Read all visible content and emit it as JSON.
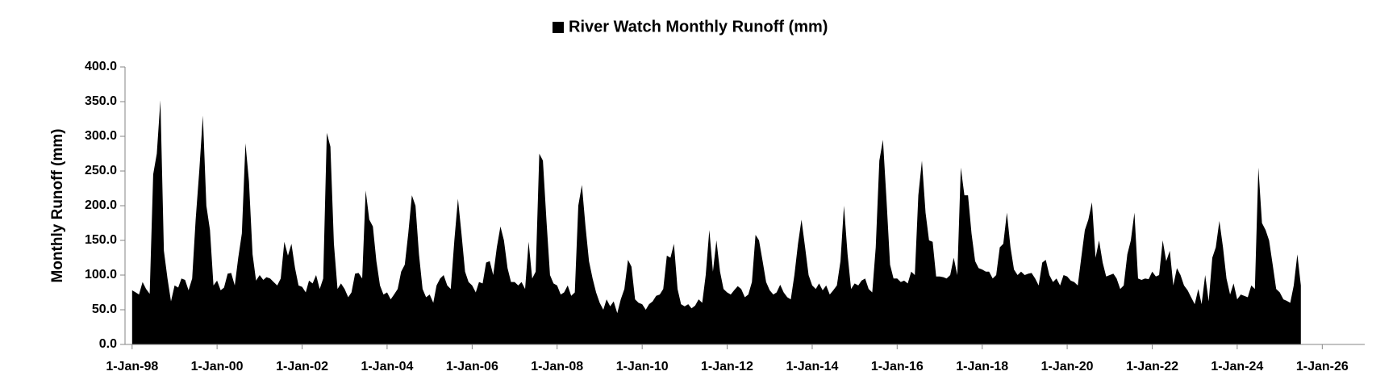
{
  "chart_data": {
    "type": "area",
    "y_label": "Monthly Runoff (mm)",
    "series": [
      {
        "name": "River Watch Monthly Runoff (mm)",
        "color": "#000000",
        "values": [
          78,
          75,
          72,
          90,
          80,
          73,
          245,
          275,
          352,
          135,
          95,
          62,
          85,
          82,
          95,
          93,
          78,
          95,
          180,
          250,
          330,
          200,
          165,
          85,
          92,
          78,
          82,
          102,
          103,
          85,
          125,
          160,
          290,
          235,
          130,
          92,
          100,
          93,
          97,
          95,
          90,
          85,
          95,
          148,
          128,
          145,
          110,
          85,
          83,
          75,
          92,
          88,
          100,
          80,
          95,
          305,
          285,
          145,
          80,
          88,
          80,
          68,
          75,
          102,
          103,
          95,
          222,
          180,
          170,
          120,
          85,
          72,
          75,
          65,
          72,
          80,
          105,
          115,
          160,
          215,
          200,
          130,
          80,
          68,
          72,
          60,
          85,
          95,
          100,
          85,
          80,
          150,
          210,
          160,
          105,
          90,
          85,
          75,
          90,
          88,
          118,
          120,
          100,
          140,
          170,
          150,
          110,
          90,
          90,
          85,
          90,
          80,
          148,
          95,
          105,
          275,
          265,
          180,
          100,
          88,
          85,
          72,
          75,
          85,
          70,
          75,
          200,
          230,
          170,
          120,
          95,
          75,
          60,
          50,
          65,
          55,
          62,
          45,
          65,
          80,
          122,
          112,
          65,
          60,
          58,
          50,
          58,
          62,
          70,
          72,
          80,
          128,
          125,
          145,
          80,
          58,
          55,
          58,
          52,
          56,
          65,
          60,
          100,
          165,
          105,
          150,
          105,
          80,
          75,
          72,
          78,
          84,
          80,
          68,
          72,
          90,
          158,
          150,
          120,
          90,
          78,
          72,
          75,
          86,
          75,
          68,
          65,
          100,
          145,
          180,
          140,
          100,
          85,
          80,
          88,
          78,
          85,
          72,
          78,
          85,
          120,
          200,
          130,
          80,
          88,
          85,
          92,
          95,
          80,
          75,
          140,
          265,
          295,
          210,
          115,
          95,
          95,
          90,
          92,
          88,
          105,
          100,
          215,
          265,
          190,
          150,
          148,
          98,
          98,
          97,
          95,
          100,
          125,
          100,
          255,
          215,
          215,
          160,
          120,
          110,
          108,
          105,
          105,
          95,
          100,
          140,
          145,
          190,
          140,
          108,
          100,
          105,
          100,
          102,
          103,
          95,
          85,
          118,
          122,
          100,
          90,
          95,
          85,
          100,
          98,
          92,
          90,
          85,
          125,
          165,
          180,
          205,
          125,
          150,
          118,
          98,
          100,
          102,
          95,
          80,
          85,
          130,
          150,
          190,
          95,
          93,
          95,
          94,
          105,
          98,
          100,
          150,
          120,
          135,
          85,
          110,
          100,
          85,
          78,
          68,
          58,
          80,
          58,
          100,
          62,
          125,
          140,
          178,
          140,
          95,
          72,
          88,
          65,
          72,
          70,
          68,
          85,
          80,
          255,
          175,
          165,
          150,
          115,
          80,
          75,
          65,
          63,
          60,
          85,
          130,
          85
        ]
      }
    ],
    "x": [
      "1998-01-01",
      "1998-02-01",
      "1998-03-01",
      "1998-04-01",
      "1998-05-01",
      "1998-06-01",
      "1998-07-01",
      "1998-08-01",
      "1998-09-01",
      "1998-10-01",
      "1998-11-01",
      "1998-12-01",
      "1999-01-01",
      "1999-02-01",
      "1999-03-01",
      "1999-04-01",
      "1999-05-01",
      "1999-06-01",
      "1999-07-01",
      "1999-08-01",
      "1999-09-01",
      "1999-10-01",
      "1999-11-01",
      "1999-12-01",
      "2000-01-01",
      "2000-02-01",
      "2000-03-01",
      "2000-04-01",
      "2000-05-01",
      "2000-06-01",
      "2000-07-01",
      "2000-08-01",
      "2000-09-01",
      "2000-10-01",
      "2000-11-01",
      "2000-12-01",
      "2001-01-01",
      "2001-02-01",
      "2001-03-01",
      "2001-04-01",
      "2001-05-01",
      "2001-06-01",
      "2001-07-01",
      "2001-08-01",
      "2001-09-01",
      "2001-10-01",
      "2001-11-01",
      "2001-12-01",
      "2002-01-01",
      "2002-02-01",
      "2002-03-01",
      "2002-04-01",
      "2002-05-01",
      "2002-06-01",
      "2002-07-01",
      "2002-08-01",
      "2002-09-01",
      "2002-10-01",
      "2002-11-01",
      "2002-12-01",
      "2003-01-01",
      "2003-02-01",
      "2003-03-01",
      "2003-04-01",
      "2003-05-01",
      "2003-06-01",
      "2003-07-01",
      "2003-08-01",
      "2003-09-01",
      "2003-10-01",
      "2003-11-01",
      "2003-12-01",
      "2004-01-01",
      "2004-02-01",
      "2004-03-01",
      "2004-04-01",
      "2004-05-01",
      "2004-06-01",
      "2004-07-01",
      "2004-08-01",
      "2004-09-01",
      "2004-10-01",
      "2004-11-01",
      "2004-12-01",
      "2005-01-01",
      "2005-02-01",
      "2005-03-01",
      "2005-04-01",
      "2005-05-01",
      "2005-06-01",
      "2005-07-01",
      "2005-08-01",
      "2005-09-01",
      "2005-10-01",
      "2005-11-01",
      "2005-12-01",
      "2006-01-01",
      "2006-02-01",
      "2006-03-01",
      "2006-04-01",
      "2006-05-01",
      "2006-06-01",
      "2006-07-01",
      "2006-08-01",
      "2006-09-01",
      "2006-10-01",
      "2006-11-01",
      "2006-12-01",
      "2007-01-01",
      "2007-02-01",
      "2007-03-01",
      "2007-04-01",
      "2007-05-01",
      "2007-06-01",
      "2007-07-01",
      "2007-08-01",
      "2007-09-01",
      "2007-10-01",
      "2007-11-01",
      "2007-12-01",
      "2008-01-01",
      "2008-02-01",
      "2008-03-01",
      "2008-04-01",
      "2008-05-01",
      "2008-06-01",
      "2008-07-01",
      "2008-08-01",
      "2008-09-01",
      "2008-10-01",
      "2008-11-01",
      "2008-12-01",
      "2009-01-01",
      "2009-02-01",
      "2009-03-01",
      "2009-04-01",
      "2009-05-01",
      "2009-06-01",
      "2009-07-01",
      "2009-08-01",
      "2009-09-01",
      "2009-10-01",
      "2009-11-01",
      "2009-12-01",
      "2010-01-01",
      "2010-02-01",
      "2010-03-01",
      "2010-04-01",
      "2010-05-01",
      "2010-06-01",
      "2010-07-01",
      "2010-08-01",
      "2010-09-01",
      "2010-10-01",
      "2010-11-01",
      "2010-12-01",
      "2011-01-01",
      "2011-02-01",
      "2011-03-01",
      "2011-04-01",
      "2011-05-01",
      "2011-06-01",
      "2011-07-01",
      "2011-08-01",
      "2011-09-01",
      "2011-10-01",
      "2011-11-01",
      "2011-12-01",
      "2012-01-01",
      "2012-02-01",
      "2012-03-01",
      "2012-04-01",
      "2012-05-01",
      "2012-06-01",
      "2012-07-01",
      "2012-08-01",
      "2012-09-01",
      "2012-10-01",
      "2012-11-01",
      "2012-12-01",
      "2013-01-01",
      "2013-02-01",
      "2013-03-01",
      "2013-04-01",
      "2013-05-01",
      "2013-06-01",
      "2013-07-01",
      "2013-08-01",
      "2013-09-01",
      "2013-10-01",
      "2013-11-01",
      "2013-12-01",
      "2014-01-01",
      "2014-02-01",
      "2014-03-01",
      "2014-04-01",
      "2014-05-01",
      "2014-06-01",
      "2014-07-01",
      "2014-08-01",
      "2014-09-01",
      "2014-10-01",
      "2014-11-01",
      "2014-12-01",
      "2015-01-01",
      "2015-02-01",
      "2015-03-01",
      "2015-04-01",
      "2015-05-01",
      "2015-06-01",
      "2015-07-01",
      "2015-08-01",
      "2015-09-01",
      "2015-10-01",
      "2015-11-01",
      "2015-12-01",
      "2016-01-01",
      "2016-02-01",
      "2016-03-01",
      "2016-04-01",
      "2016-05-01",
      "2016-06-01",
      "2016-07-01",
      "2016-08-01",
      "2016-09-01",
      "2016-10-01",
      "2016-11-01",
      "2016-12-01",
      "2017-01-01",
      "2017-02-01",
      "2017-03-01",
      "2017-04-01",
      "2017-05-01",
      "2017-06-01",
      "2017-07-01",
      "2017-08-01",
      "2017-09-01",
      "2017-10-01",
      "2017-11-01",
      "2017-12-01",
      "2018-01-01",
      "2018-02-01",
      "2018-03-01",
      "2018-04-01",
      "2018-05-01",
      "2018-06-01",
      "2018-07-01",
      "2018-08-01",
      "2018-09-01",
      "2018-10-01",
      "2018-11-01",
      "2018-12-01",
      "2019-01-01",
      "2019-02-01",
      "2019-03-01",
      "2019-04-01",
      "2019-05-01",
      "2019-06-01",
      "2019-07-01",
      "2019-08-01",
      "2019-09-01",
      "2019-10-01",
      "2019-11-01",
      "2019-12-01",
      "2020-01-01",
      "2020-02-01",
      "2020-03-01",
      "2020-04-01",
      "2020-05-01",
      "2020-06-01",
      "2020-07-01",
      "2020-08-01",
      "2020-09-01",
      "2020-10-01",
      "2020-11-01",
      "2020-12-01",
      "2021-01-01",
      "2021-02-01",
      "2021-03-01",
      "2021-04-01",
      "2021-05-01",
      "2021-06-01",
      "2021-07-01",
      "2021-08-01",
      "2021-09-01",
      "2021-10-01",
      "2021-11-01",
      "2021-12-01",
      "2022-01-01",
      "2022-02-01",
      "2022-03-01",
      "2022-04-01",
      "2022-05-01",
      "2022-06-01",
      "2022-07-01",
      "2022-08-01",
      "2022-09-01",
      "2022-10-01",
      "2022-11-01",
      "2022-12-01",
      "2023-01-01",
      "2023-02-01",
      "2023-03-01",
      "2023-04-01",
      "2023-05-01",
      "2023-06-01",
      "2023-07-01",
      "2023-08-01",
      "2023-09-01",
      "2023-10-01",
      "2023-11-01",
      "2023-12-01",
      "2024-01-01",
      "2024-02-01",
      "2024-03-01",
      "2024-04-01",
      "2024-05-01",
      "2024-06-01",
      "2024-07-01",
      "2024-08-01",
      "2024-09-01",
      "2024-10-01",
      "2024-11-01",
      "2024-12-01",
      "2025-01-01",
      "2025-02-01",
      "2025-03-01",
      "2025-04-01",
      "2025-05-01",
      "2025-06-01",
      "2025-07-01"
    ],
    "xlim": [
      "1997-11-01",
      "2027-01-01"
    ],
    "xticks": [
      {
        "value": "1998-01-01",
        "label": "1-Jan-98"
      },
      {
        "value": "2000-01-01",
        "label": "1-Jan-00"
      },
      {
        "value": "2002-01-01",
        "label": "1-Jan-02"
      },
      {
        "value": "2004-01-01",
        "label": "1-Jan-04"
      },
      {
        "value": "2006-01-01",
        "label": "1-Jan-06"
      },
      {
        "value": "2008-01-01",
        "label": "1-Jan-08"
      },
      {
        "value": "2010-01-01",
        "label": "1-Jan-10"
      },
      {
        "value": "2012-01-01",
        "label": "1-Jan-12"
      },
      {
        "value": "2014-01-01",
        "label": "1-Jan-14"
      },
      {
        "value": "2016-01-01",
        "label": "1-Jan-16"
      },
      {
        "value": "2018-01-01",
        "label": "1-Jan-18"
      },
      {
        "value": "2020-01-01",
        "label": "1-Jan-20"
      },
      {
        "value": "2022-01-01",
        "label": "1-Jan-22"
      },
      {
        "value": "2024-01-01",
        "label": "1-Jan-24"
      },
      {
        "value": "2026-01-01",
        "label": "1-Jan-26"
      }
    ],
    "ylim": [
      0,
      400
    ],
    "yticks": [
      {
        "value": 0,
        "label": "0.0"
      },
      {
        "value": 50,
        "label": "50.0"
      },
      {
        "value": 100,
        "label": "100.0"
      },
      {
        "value": 150,
        "label": "150.0"
      },
      {
        "value": 200,
        "label": "200.0"
      },
      {
        "value": 250,
        "label": "250.0"
      },
      {
        "value": 300,
        "label": "300.0"
      },
      {
        "value": 350,
        "label": "350.0"
      },
      {
        "value": 400,
        "label": "400.0"
      }
    ],
    "grid": false,
    "legend": "top"
  }
}
